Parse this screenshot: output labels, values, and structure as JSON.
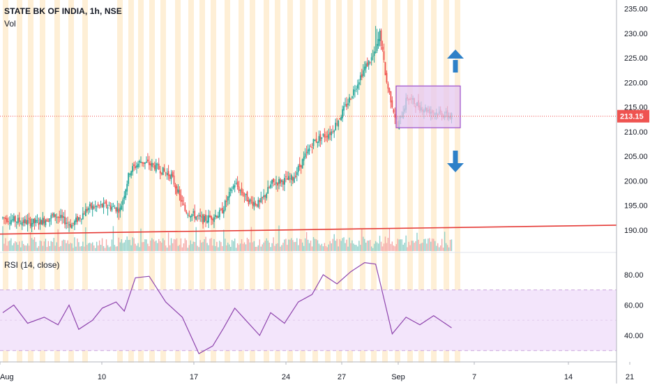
{
  "header": {
    "title": "STATE BK OF INDIA, 1h, NSE",
    "volume_label": "Vol",
    "rsi_label": "RSI (14, close)"
  },
  "price_badge": "213.15",
  "colors": {
    "up": "#26a69a",
    "down": "#ef5350",
    "trendline": "#e53935",
    "rsi_line": "#8e44ad",
    "rsi_band": "#f3e5fb",
    "box_fill": "#e6c8f0",
    "box_stroke": "#9b4dca",
    "arrow": "#2d80c8",
    "session_stripe": "#fde9c8"
  },
  "chart_data": [
    {
      "type": "candlestick",
      "title": "STATE BK OF INDIA, 1h, NSE",
      "x_tick_labels": [
        "Aug",
        "10",
        "17",
        "24",
        "27",
        "Sep",
        "7",
        "14",
        "21"
      ],
      "y_ticks": [
        190,
        195,
        200,
        205,
        210,
        215,
        220,
        225,
        230,
        235
      ],
      "ylim": [
        187,
        236
      ],
      "last_price": 213.15,
      "trendline": {
        "start": 189.2,
        "end": 191.0
      },
      "consolidation_box": {
        "low": 210.8,
        "high": 219.3
      },
      "close_path": [
        {
          "bar": 0,
          "close": 192.5
        },
        {
          "bar": 12,
          "close": 191.8
        },
        {
          "bar": 25,
          "close": 191.5
        },
        {
          "bar": 38,
          "close": 193.0
        },
        {
          "bar": 50,
          "close": 191.0
        },
        {
          "bar": 62,
          "close": 194.5
        },
        {
          "bar": 75,
          "close": 195.0
        },
        {
          "bar": 85,
          "close": 194.2
        },
        {
          "bar": 92,
          "close": 202.0
        },
        {
          "bar": 100,
          "close": 204.0
        },
        {
          "bar": 110,
          "close": 203.0
        },
        {
          "bar": 122,
          "close": 201.0
        },
        {
          "bar": 132,
          "close": 194.0
        },
        {
          "bar": 145,
          "close": 192.0
        },
        {
          "bar": 158,
          "close": 193.5
        },
        {
          "bar": 168,
          "close": 199.5
        },
        {
          "bar": 178,
          "close": 196.0
        },
        {
          "bar": 186,
          "close": 195.3
        },
        {
          "bar": 195,
          "close": 199.5
        },
        {
          "bar": 210,
          "close": 200.5
        },
        {
          "bar": 225,
          "close": 208.0
        },
        {
          "bar": 238,
          "close": 210.0
        },
        {
          "bar": 250,
          "close": 216.0
        },
        {
          "bar": 262,
          "close": 223.0
        },
        {
          "bar": 270,
          "close": 226.0
        },
        {
          "bar": 273,
          "close": 230.0
        },
        {
          "bar": 278,
          "close": 220.0
        },
        {
          "bar": 286,
          "close": 211.0
        },
        {
          "bar": 293,
          "close": 217.0
        },
        {
          "bar": 302,
          "close": 215.0
        },
        {
          "bar": 312,
          "close": 214.0
        },
        {
          "bar": 325,
          "close": 213.15
        }
      ]
    },
    {
      "type": "line",
      "title": "RSI (14, close)",
      "y_ticks": [
        40,
        60,
        80
      ],
      "ylim": [
        24,
        90
      ],
      "band": [
        30,
        70
      ],
      "values": [
        {
          "bar": 0,
          "value": 55
        },
        {
          "bar": 8,
          "value": 60
        },
        {
          "bar": 18,
          "value": 48
        },
        {
          "bar": 30,
          "value": 52
        },
        {
          "bar": 40,
          "value": 47
        },
        {
          "bar": 48,
          "value": 60
        },
        {
          "bar": 55,
          "value": 44
        },
        {
          "bar": 65,
          "value": 50
        },
        {
          "bar": 72,
          "value": 58
        },
        {
          "bar": 82,
          "value": 62
        },
        {
          "bar": 88,
          "value": 56
        },
        {
          "bar": 96,
          "value": 78
        },
        {
          "bar": 106,
          "value": 79
        },
        {
          "bar": 118,
          "value": 62
        },
        {
          "bar": 130,
          "value": 52
        },
        {
          "bar": 136,
          "value": 40
        },
        {
          "bar": 142,
          "value": 28
        },
        {
          "bar": 152,
          "value": 33
        },
        {
          "bar": 160,
          "value": 45
        },
        {
          "bar": 168,
          "value": 58
        },
        {
          "bar": 176,
          "value": 50
        },
        {
          "bar": 186,
          "value": 40
        },
        {
          "bar": 194,
          "value": 55
        },
        {
          "bar": 204,
          "value": 48
        },
        {
          "bar": 214,
          "value": 62
        },
        {
          "bar": 224,
          "value": 67
        },
        {
          "bar": 232,
          "value": 80
        },
        {
          "bar": 242,
          "value": 74
        },
        {
          "bar": 252,
          "value": 82
        },
        {
          "bar": 262,
          "value": 88
        },
        {
          "bar": 270,
          "value": 87
        },
        {
          "bar": 274,
          "value": 72
        },
        {
          "bar": 282,
          "value": 41
        },
        {
          "bar": 292,
          "value": 52
        },
        {
          "bar": 302,
          "value": 47
        },
        {
          "bar": 312,
          "value": 53
        },
        {
          "bar": 325,
          "value": 45
        }
      ]
    },
    {
      "type": "bar",
      "title": "Vol",
      "note": "volume histogram, colored by candle direction"
    }
  ]
}
